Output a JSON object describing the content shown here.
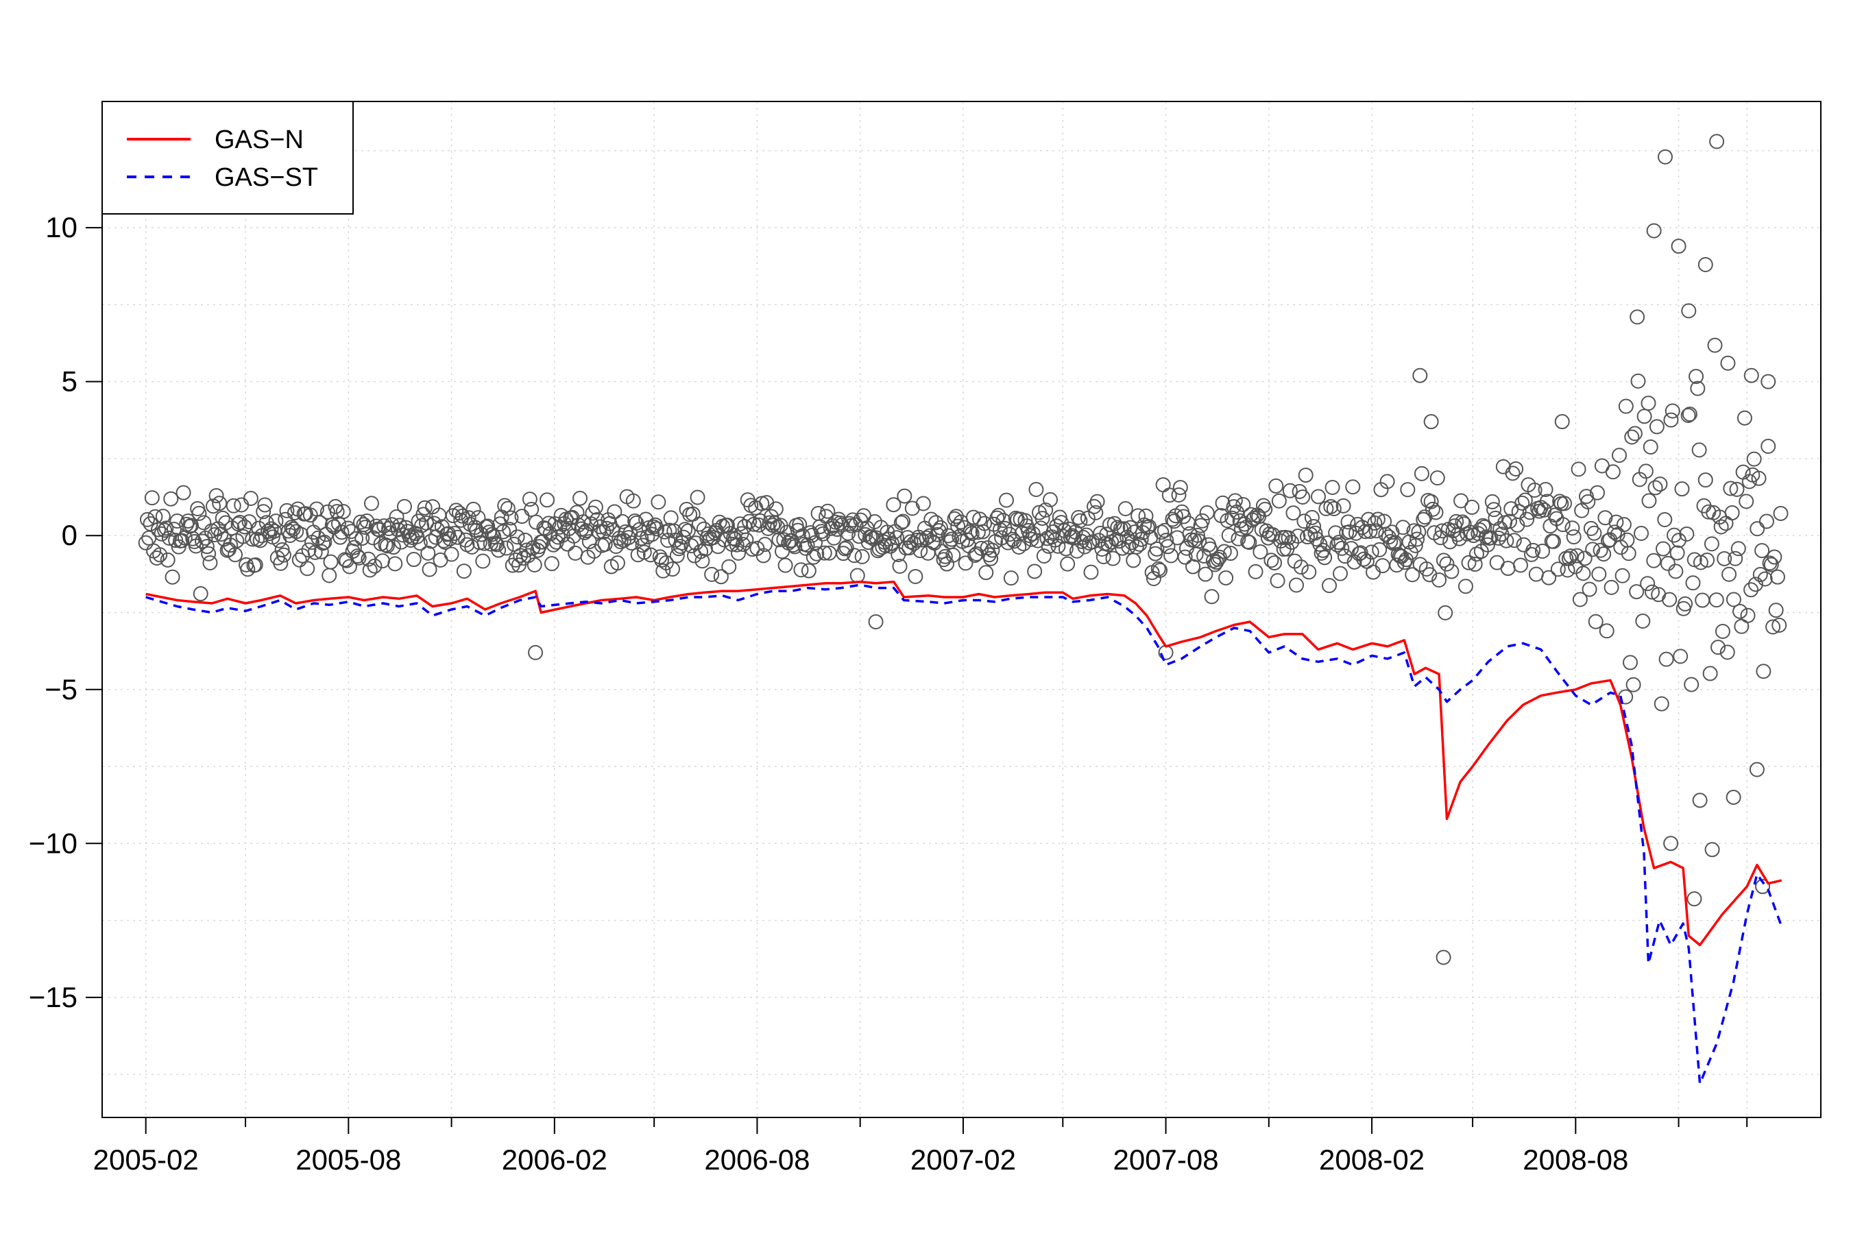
{
  "chart_data": {
    "type": "line",
    "title": "",
    "xlabel": "",
    "ylabel": "",
    "ylim": [
      -18.9,
      14.1
    ],
    "x_ticks": [
      {
        "date": "2005-02-01",
        "label": "2005-02"
      },
      {
        "date": "2005-08-01",
        "label": "2005-08"
      },
      {
        "date": "2006-02-01",
        "label": "2006-02"
      },
      {
        "date": "2006-08-01",
        "label": "2006-08"
      },
      {
        "date": "2007-02-01",
        "label": "2007-02"
      },
      {
        "date": "2007-08-01",
        "label": "2007-08"
      },
      {
        "date": "2008-02-01",
        "label": "2008-02"
      },
      {
        "date": "2008-08-01",
        "label": "2008-08"
      }
    ],
    "x_minor_ticks": [
      "2005-05-01",
      "2005-11-01",
      "2006-05-01",
      "2006-11-01",
      "2007-05-01",
      "2007-11-01",
      "2008-05-01",
      "2008-11-01",
      "2009-01-01"
    ],
    "x_range": [
      "2004-12-24",
      "2009-03-08"
    ],
    "y_ticks": [
      10,
      5,
      0,
      -5,
      -10,
      -15
    ],
    "y_tick_labels": [
      "10",
      "5",
      "0",
      "−5",
      "−10",
      "−15"
    ],
    "grid": true,
    "legend": {
      "position": "top-left",
      "entries": [
        {
          "label": "GAS−N",
          "color": "#ff0000",
          "style": "solid"
        },
        {
          "label": "GAS−ST",
          "color": "#0000ff",
          "style": "dashed"
        }
      ]
    },
    "series": [
      {
        "name": "GAS−N",
        "color": "#ff0000",
        "style": "solid",
        "points": [
          [
            "2005-02-01",
            -1.9
          ],
          [
            "2005-02-15",
            -2.0
          ],
          [
            "2005-03-01",
            -2.1
          ],
          [
            "2005-03-15",
            -2.15
          ],
          [
            "2005-04-01",
            -2.2
          ],
          [
            "2005-04-15",
            -2.05
          ],
          [
            "2005-05-01",
            -2.2
          ],
          [
            "2005-05-15",
            -2.1
          ],
          [
            "2005-06-01",
            -1.95
          ],
          [
            "2005-06-15",
            -2.2
          ],
          [
            "2005-07-01",
            -2.1
          ],
          [
            "2005-07-15",
            -2.05
          ],
          [
            "2005-08-01",
            -2.0
          ],
          [
            "2005-08-15",
            -2.1
          ],
          [
            "2005-09-01",
            -2.0
          ],
          [
            "2005-09-15",
            -2.05
          ],
          [
            "2005-10-01",
            -1.95
          ],
          [
            "2005-10-15",
            -2.3
          ],
          [
            "2005-11-01",
            -2.2
          ],
          [
            "2005-11-15",
            -2.05
          ],
          [
            "2005-12-01",
            -2.4
          ],
          [
            "2005-12-15",
            -2.2
          ],
          [
            "2006-01-01",
            -2.0
          ],
          [
            "2006-01-15",
            -1.8
          ],
          [
            "2006-01-20",
            -2.5
          ],
          [
            "2006-02-15",
            -2.3
          ],
          [
            "2006-03-01",
            -2.2
          ],
          [
            "2006-03-15",
            -2.1
          ],
          [
            "2006-04-01",
            -2.05
          ],
          [
            "2006-04-15",
            -2.0
          ],
          [
            "2006-05-01",
            -2.1
          ],
          [
            "2006-05-15",
            -2.0
          ],
          [
            "2006-06-01",
            -1.9
          ],
          [
            "2006-06-15",
            -1.85
          ],
          [
            "2006-07-01",
            -1.8
          ],
          [
            "2006-07-15",
            -1.8
          ],
          [
            "2006-08-01",
            -1.75
          ],
          [
            "2006-08-15",
            -1.7
          ],
          [
            "2006-09-01",
            -1.65
          ],
          [
            "2006-09-15",
            -1.6
          ],
          [
            "2006-10-01",
            -1.55
          ],
          [
            "2006-10-15",
            -1.55
          ],
          [
            "2006-11-01",
            -1.5
          ],
          [
            "2006-11-15",
            -1.55
          ],
          [
            "2006-12-01",
            -1.5
          ],
          [
            "2006-12-10",
            -2.0
          ],
          [
            "2007-01-01",
            -1.95
          ],
          [
            "2007-01-15",
            -2.0
          ],
          [
            "2007-02-01",
            -2.0
          ],
          [
            "2007-02-15",
            -1.9
          ],
          [
            "2007-03-01",
            -2.0
          ],
          [
            "2007-03-15",
            -1.95
          ],
          [
            "2007-04-01",
            -1.9
          ],
          [
            "2007-04-15",
            -1.85
          ],
          [
            "2007-05-01",
            -1.85
          ],
          [
            "2007-05-10",
            -2.05
          ],
          [
            "2007-05-25",
            -1.95
          ],
          [
            "2007-06-10",
            -1.9
          ],
          [
            "2007-06-25",
            -1.95
          ],
          [
            "2007-07-05",
            -2.2
          ],
          [
            "2007-07-15",
            -2.6
          ],
          [
            "2007-07-25",
            -3.2
          ],
          [
            "2007-08-01",
            -3.6
          ],
          [
            "2007-08-15",
            -3.45
          ],
          [
            "2007-09-01",
            -3.3
          ],
          [
            "2007-09-15",
            -3.1
          ],
          [
            "2007-10-01",
            -2.9
          ],
          [
            "2007-10-15",
            -2.8
          ],
          [
            "2007-11-01",
            -3.3
          ],
          [
            "2007-11-15",
            -3.2
          ],
          [
            "2007-12-01",
            -3.2
          ],
          [
            "2007-12-15",
            -3.7
          ],
          [
            "2008-01-01",
            -3.5
          ],
          [
            "2008-01-15",
            -3.7
          ],
          [
            "2008-02-01",
            -3.5
          ],
          [
            "2008-02-15",
            -3.6
          ],
          [
            "2008-03-01",
            -3.4
          ],
          [
            "2008-03-10",
            -4.5
          ],
          [
            "2008-03-20",
            -4.3
          ],
          [
            "2008-04-01",
            -4.5
          ],
          [
            "2008-04-08",
            -9.2
          ],
          [
            "2008-04-20",
            -8.0
          ],
          [
            "2008-05-01",
            -7.5
          ],
          [
            "2008-05-15",
            -6.8
          ],
          [
            "2008-06-01",
            -6.0
          ],
          [
            "2008-06-15",
            -5.5
          ],
          [
            "2008-07-01",
            -5.2
          ],
          [
            "2008-07-15",
            -5.1
          ],
          [
            "2008-08-01",
            -5.0
          ],
          [
            "2008-08-15",
            -4.8
          ],
          [
            "2008-09-01",
            -4.7
          ],
          [
            "2008-09-10",
            -5.5
          ],
          [
            "2008-09-20",
            -7.2
          ],
          [
            "2008-10-01",
            -9.5
          ],
          [
            "2008-10-10",
            -10.8
          ],
          [
            "2008-10-25",
            -10.6
          ],
          [
            "2008-11-05",
            -10.8
          ],
          [
            "2008-11-10",
            -13.0
          ],
          [
            "2008-11-20",
            -13.3
          ],
          [
            "2008-12-10",
            -12.3
          ],
          [
            "2009-01-01",
            -11.4
          ],
          [
            "2009-01-10",
            -10.7
          ],
          [
            "2009-01-20",
            -11.3
          ],
          [
            "2009-02-01",
            -11.2
          ]
        ]
      },
      {
        "name": "GAS−ST",
        "color": "#0000ff",
        "style": "dashed",
        "points": [
          [
            "2005-02-01",
            -2.0
          ],
          [
            "2005-02-15",
            -2.15
          ],
          [
            "2005-03-01",
            -2.3
          ],
          [
            "2005-03-15",
            -2.4
          ],
          [
            "2005-04-01",
            -2.5
          ],
          [
            "2005-04-15",
            -2.35
          ],
          [
            "2005-05-01",
            -2.45
          ],
          [
            "2005-05-15",
            -2.3
          ],
          [
            "2005-06-01",
            -2.1
          ],
          [
            "2005-06-15",
            -2.4
          ],
          [
            "2005-07-01",
            -2.2
          ],
          [
            "2005-07-15",
            -2.25
          ],
          [
            "2005-08-01",
            -2.15
          ],
          [
            "2005-08-15",
            -2.3
          ],
          [
            "2005-09-01",
            -2.2
          ],
          [
            "2005-09-15",
            -2.3
          ],
          [
            "2005-10-01",
            -2.2
          ],
          [
            "2005-10-15",
            -2.6
          ],
          [
            "2005-11-01",
            -2.4
          ],
          [
            "2005-11-15",
            -2.3
          ],
          [
            "2005-12-01",
            -2.6
          ],
          [
            "2005-12-15",
            -2.35
          ],
          [
            "2006-01-01",
            -2.1
          ],
          [
            "2006-01-15",
            -2.0
          ],
          [
            "2006-01-20",
            -2.3
          ],
          [
            "2006-02-15",
            -2.2
          ],
          [
            "2006-03-01",
            -2.15
          ],
          [
            "2006-03-15",
            -2.2
          ],
          [
            "2006-04-01",
            -2.1
          ],
          [
            "2006-04-15",
            -2.2
          ],
          [
            "2006-05-01",
            -2.15
          ],
          [
            "2006-05-15",
            -2.1
          ],
          [
            "2006-06-01",
            -2.0
          ],
          [
            "2006-06-15",
            -2.0
          ],
          [
            "2006-07-01",
            -1.95
          ],
          [
            "2006-07-15",
            -2.1
          ],
          [
            "2006-08-01",
            -1.9
          ],
          [
            "2006-08-15",
            -1.8
          ],
          [
            "2006-09-01",
            -1.8
          ],
          [
            "2006-09-15",
            -1.7
          ],
          [
            "2006-10-01",
            -1.75
          ],
          [
            "2006-10-15",
            -1.7
          ],
          [
            "2006-11-01",
            -1.6
          ],
          [
            "2006-11-15",
            -1.7
          ],
          [
            "2006-12-01",
            -1.7
          ],
          [
            "2006-12-10",
            -2.1
          ],
          [
            "2007-01-01",
            -2.15
          ],
          [
            "2007-01-15",
            -2.2
          ],
          [
            "2007-02-01",
            -2.1
          ],
          [
            "2007-02-15",
            -2.1
          ],
          [
            "2007-03-01",
            -2.15
          ],
          [
            "2007-03-15",
            -2.05
          ],
          [
            "2007-04-01",
            -2.0
          ],
          [
            "2007-04-15",
            -2.0
          ],
          [
            "2007-05-01",
            -2.0
          ],
          [
            "2007-05-10",
            -2.15
          ],
          [
            "2007-05-25",
            -2.1
          ],
          [
            "2007-06-10",
            -2.0
          ],
          [
            "2007-06-25",
            -2.3
          ],
          [
            "2007-07-05",
            -2.6
          ],
          [
            "2007-07-15",
            -3.0
          ],
          [
            "2007-07-25",
            -3.6
          ],
          [
            "2007-08-01",
            -4.2
          ],
          [
            "2007-08-15",
            -4.0
          ],
          [
            "2007-09-01",
            -3.6
          ],
          [
            "2007-09-15",
            -3.3
          ],
          [
            "2007-10-01",
            -3.0
          ],
          [
            "2007-10-15",
            -3.1
          ],
          [
            "2007-11-01",
            -3.8
          ],
          [
            "2007-11-15",
            -3.6
          ],
          [
            "2007-12-01",
            -4.0
          ],
          [
            "2007-12-15",
            -4.1
          ],
          [
            "2008-01-01",
            -4.0
          ],
          [
            "2008-01-15",
            -4.2
          ],
          [
            "2008-02-01",
            -3.9
          ],
          [
            "2008-02-15",
            -4.0
          ],
          [
            "2008-03-01",
            -3.8
          ],
          [
            "2008-03-10",
            -4.9
          ],
          [
            "2008-03-20",
            -4.6
          ],
          [
            "2008-04-01",
            -5.0
          ],
          [
            "2008-04-08",
            -5.4
          ],
          [
            "2008-04-20",
            -5.0
          ],
          [
            "2008-05-01",
            -4.7
          ],
          [
            "2008-05-15",
            -4.1
          ],
          [
            "2008-06-01",
            -3.6
          ],
          [
            "2008-06-15",
            -3.5
          ],
          [
            "2008-07-01",
            -3.7
          ],
          [
            "2008-07-15",
            -4.4
          ],
          [
            "2008-08-01",
            -5.2
          ],
          [
            "2008-08-15",
            -5.5
          ],
          [
            "2008-09-01",
            -5.1
          ],
          [
            "2008-09-10",
            -5.2
          ],
          [
            "2008-09-20",
            -6.8
          ],
          [
            "2008-10-01",
            -10.3
          ],
          [
            "2008-10-05",
            -13.9
          ],
          [
            "2008-10-15",
            -12.5
          ],
          [
            "2008-10-25",
            -13.3
          ],
          [
            "2008-11-05",
            -12.6
          ],
          [
            "2008-11-10",
            -13.4
          ],
          [
            "2008-11-20",
            -17.8
          ],
          [
            "2008-12-05",
            -16.5
          ],
          [
            "2008-12-20",
            -14.5
          ],
          [
            "2009-01-01",
            -12.3
          ],
          [
            "2009-01-10",
            -11.0
          ],
          [
            "2009-01-20",
            -11.5
          ],
          [
            "2009-02-01",
            -12.7
          ]
        ]
      }
    ],
    "scatter": {
      "name": "",
      "marker": "open-circle",
      "color": "#555555",
      "notable_points": [
        [
          "2006-01-15",
          -3.8
        ],
        [
          "2006-11-15",
          -2.8
        ],
        [
          "2007-08-01",
          -3.8
        ],
        [
          "2008-03-15",
          5.2
        ],
        [
          "2008-03-25",
          3.7
        ],
        [
          "2008-04-05",
          -13.7
        ],
        [
          "2008-07-20",
          3.7
        ],
        [
          "2008-09-15",
          4.2
        ],
        [
          "2008-09-25",
          7.1
        ],
        [
          "2008-10-05",
          4.3
        ],
        [
          "2008-10-10",
          9.9
        ],
        [
          "2008-10-20",
          12.3
        ],
        [
          "2008-11-01",
          9.4
        ],
        [
          "2008-11-10",
          7.3
        ],
        [
          "2008-11-25",
          8.8
        ],
        [
          "2008-12-05",
          12.8
        ],
        [
          "2008-12-15",
          5.6
        ],
        [
          "2009-01-05",
          5.2
        ],
        [
          "2009-01-20",
          5.0
        ],
        [
          "2008-10-25",
          -10.0
        ],
        [
          "2008-11-15",
          -11.8
        ],
        [
          "2008-12-01",
          -10.2
        ],
        [
          "2009-01-15",
          -11.4
        ],
        [
          "2008-11-20",
          -8.6
        ],
        [
          "2008-12-20",
          -8.5
        ],
        [
          "2009-01-10",
          -7.6
        ]
      ]
    }
  }
}
